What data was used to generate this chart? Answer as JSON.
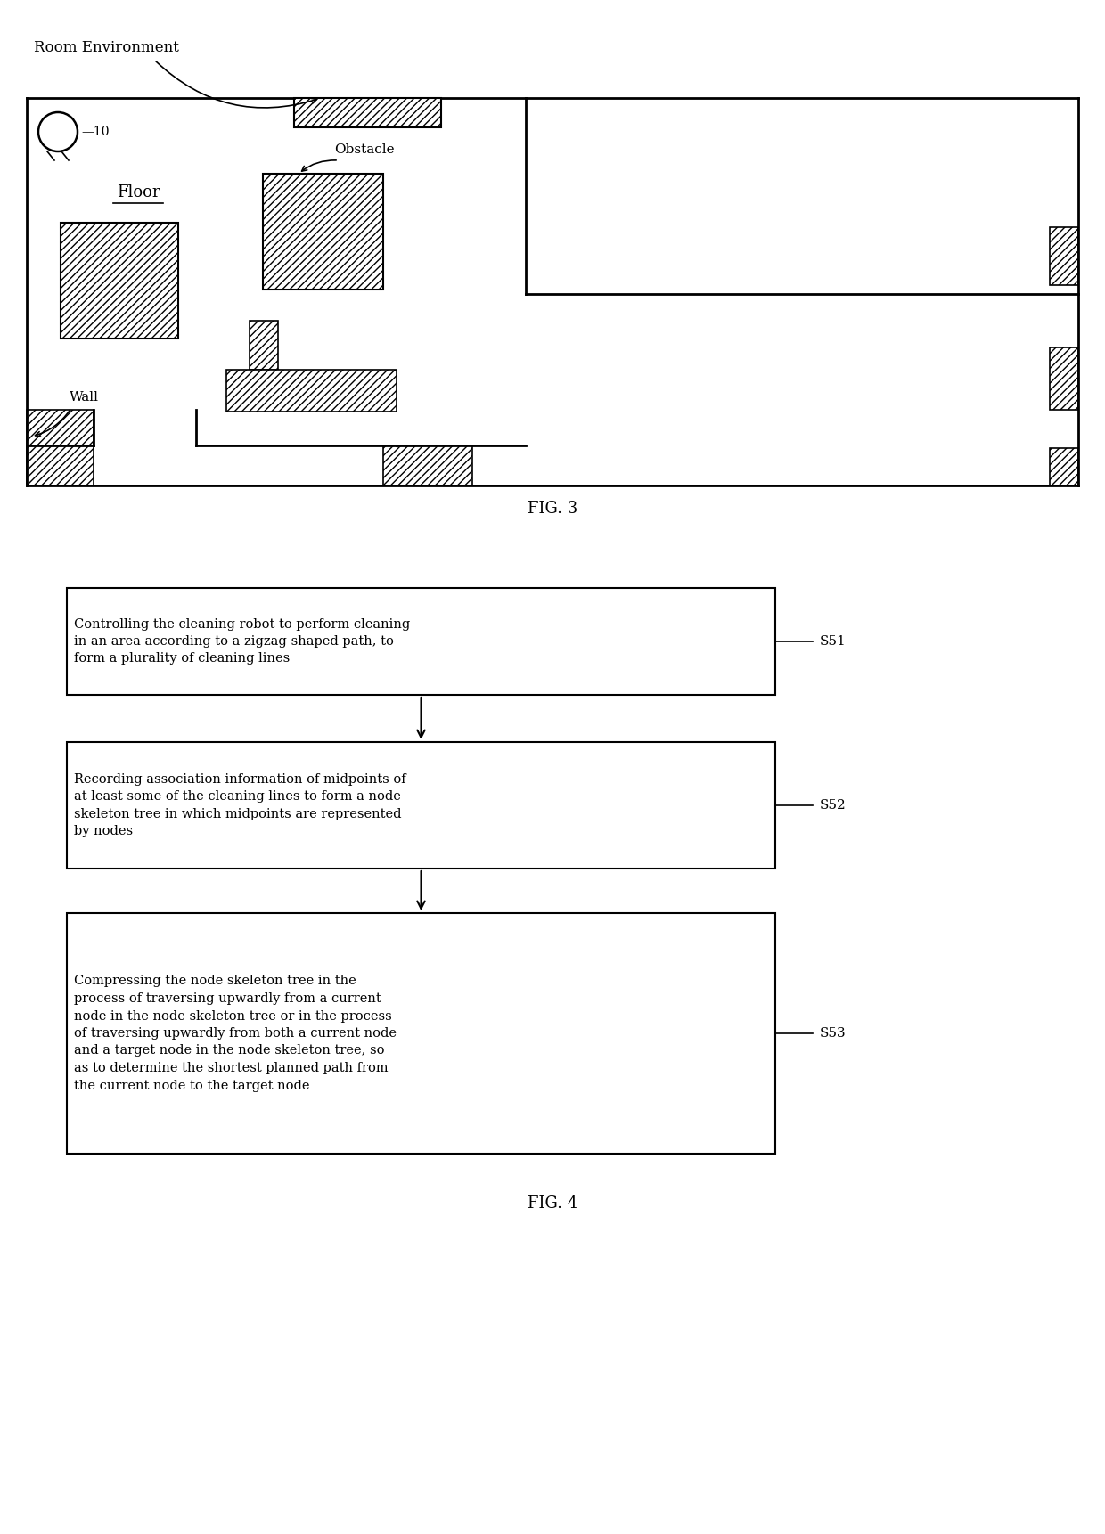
{
  "bg_color": "#ffffff",
  "fig_width": 12.4,
  "fig_height": 17.22,
  "fig3_label": "FIG. 3",
  "fig4_label": "FIG. 4",
  "room_env_label": "Room Environment",
  "floor_label": "Floor",
  "obstacle_label": "Obstacle",
  "wall_label": "Wall",
  "robot_label": "—10",
  "flowchart_boxes": [
    {
      "text": "Controlling the cleaning robot to perform cleaning\nin an area according to a zigzag-shaped path, to\nform a plurality of cleaning lines",
      "label": "S51"
    },
    {
      "text": "Recording association information of midpoints of\nat least some of the cleaning lines to form a node\nskeleton tree in which midpoints are represented\nby nodes",
      "label": "S52"
    },
    {
      "text": "Compressing the node skeleton tree in the\nprocess of traversing upwardly from a current\nnode in the node skeleton tree or in the process\nof traversing upwardly from both a current node\nand a target node in the node skeleton tree, so\nas to determine the shortest planned path from\nthe current node to the target node",
      "label": "S53"
    }
  ]
}
